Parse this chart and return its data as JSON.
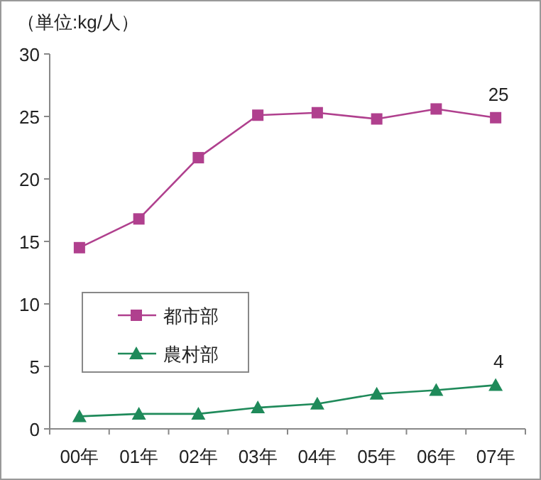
{
  "chart_data": {
    "type": "line",
    "title": "（単位:kg/人）",
    "categories": [
      "00年",
      "01年",
      "02年",
      "03年",
      "04年",
      "05年",
      "06年",
      "07年"
    ],
    "series": [
      {
        "name": "都市部",
        "color": "#b0408e",
        "marker": "square",
        "values": [
          14.5,
          16.8,
          21.7,
          25.1,
          25.3,
          24.8,
          25.6,
          24.9
        ],
        "value_labels": [
          null,
          null,
          null,
          null,
          null,
          null,
          null,
          "25"
        ]
      },
      {
        "name": "農村部",
        "color": "#1f8a5a",
        "marker": "triangle",
        "values": [
          1.0,
          1.2,
          1.2,
          1.7,
          2.0,
          2.8,
          3.1,
          3.5
        ],
        "value_labels": [
          null,
          null,
          null,
          null,
          null,
          null,
          null,
          "4"
        ]
      }
    ],
    "ylim": [
      0,
      30
    ],
    "yticks": [
      0,
      5,
      10,
      15,
      20,
      25,
      30
    ],
    "grid": false,
    "legend": "left",
    "line_style": "solid"
  }
}
